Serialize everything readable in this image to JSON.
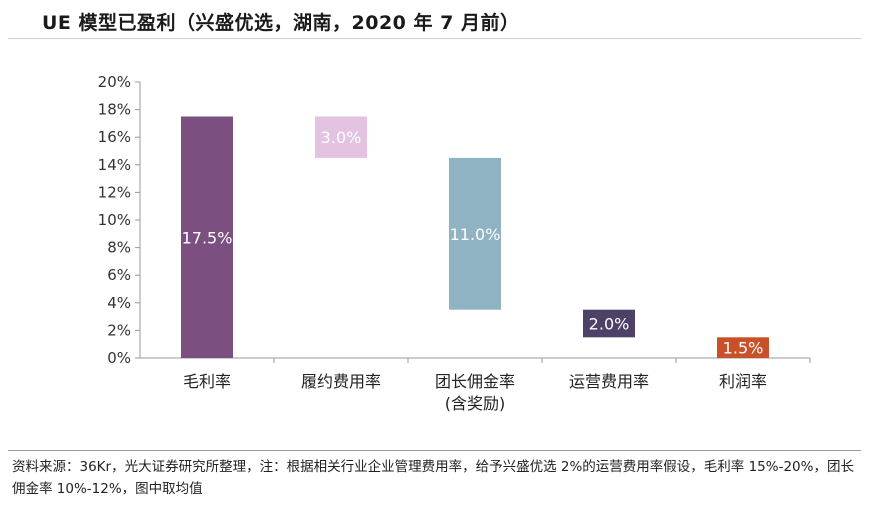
{
  "title": "UE 模型已盈利（兴盛优选，湖南，2020 年 7 月前）",
  "source_note": "资料来源：36Kr，光大证券研究所整理，注：根据相关行业企业管理费用率，给予兴盛优选 2%的运营费用率假设，毛利率 15%-20%，团长佣金率 10%-12%，图中取均值",
  "colors": {
    "gross": "#7b4f7f",
    "fulfillment": "#e3c3e1",
    "commission": "#8fb3c2",
    "opex": "#4d4168",
    "profit": "#c9512a"
  },
  "chart_data": {
    "type": "bar",
    "subtype": "waterfall",
    "title": "UE 模型已盈利（兴盛优选，湖南，2020 年 7 月前）",
    "categories": [
      "毛利率",
      "履约费用率",
      "团长佣金率\n(含奖励)",
      "运营费用率",
      "利润率"
    ],
    "values": [
      17.5,
      3.0,
      11.0,
      2.0,
      1.5
    ],
    "bar_ranges": [
      [
        0,
        17.5
      ],
      [
        14.5,
        17.5
      ],
      [
        3.5,
        14.5
      ],
      [
        1.5,
        3.5
      ],
      [
        0,
        1.5
      ]
    ],
    "data_labels": [
      "17.5%",
      "3.0%",
      "11.0%",
      "2.0%",
      "1.5%"
    ],
    "bar_colors": [
      "#7b4f7f",
      "#e3c3e1",
      "#8fb3c2",
      "#4d4168",
      "#c9512a"
    ],
    "label_colors": [
      "#ffffff",
      "#ffffff",
      "#ffffff",
      "#ffffff",
      "#ffffff"
    ],
    "ylim": [
      0,
      20
    ],
    "yticks": [
      "0%",
      "2%",
      "4%",
      "6%",
      "8%",
      "10%",
      "12%",
      "14%",
      "16%",
      "18%",
      "20%"
    ],
    "xlabel": "",
    "ylabel": "",
    "grid": false
  }
}
